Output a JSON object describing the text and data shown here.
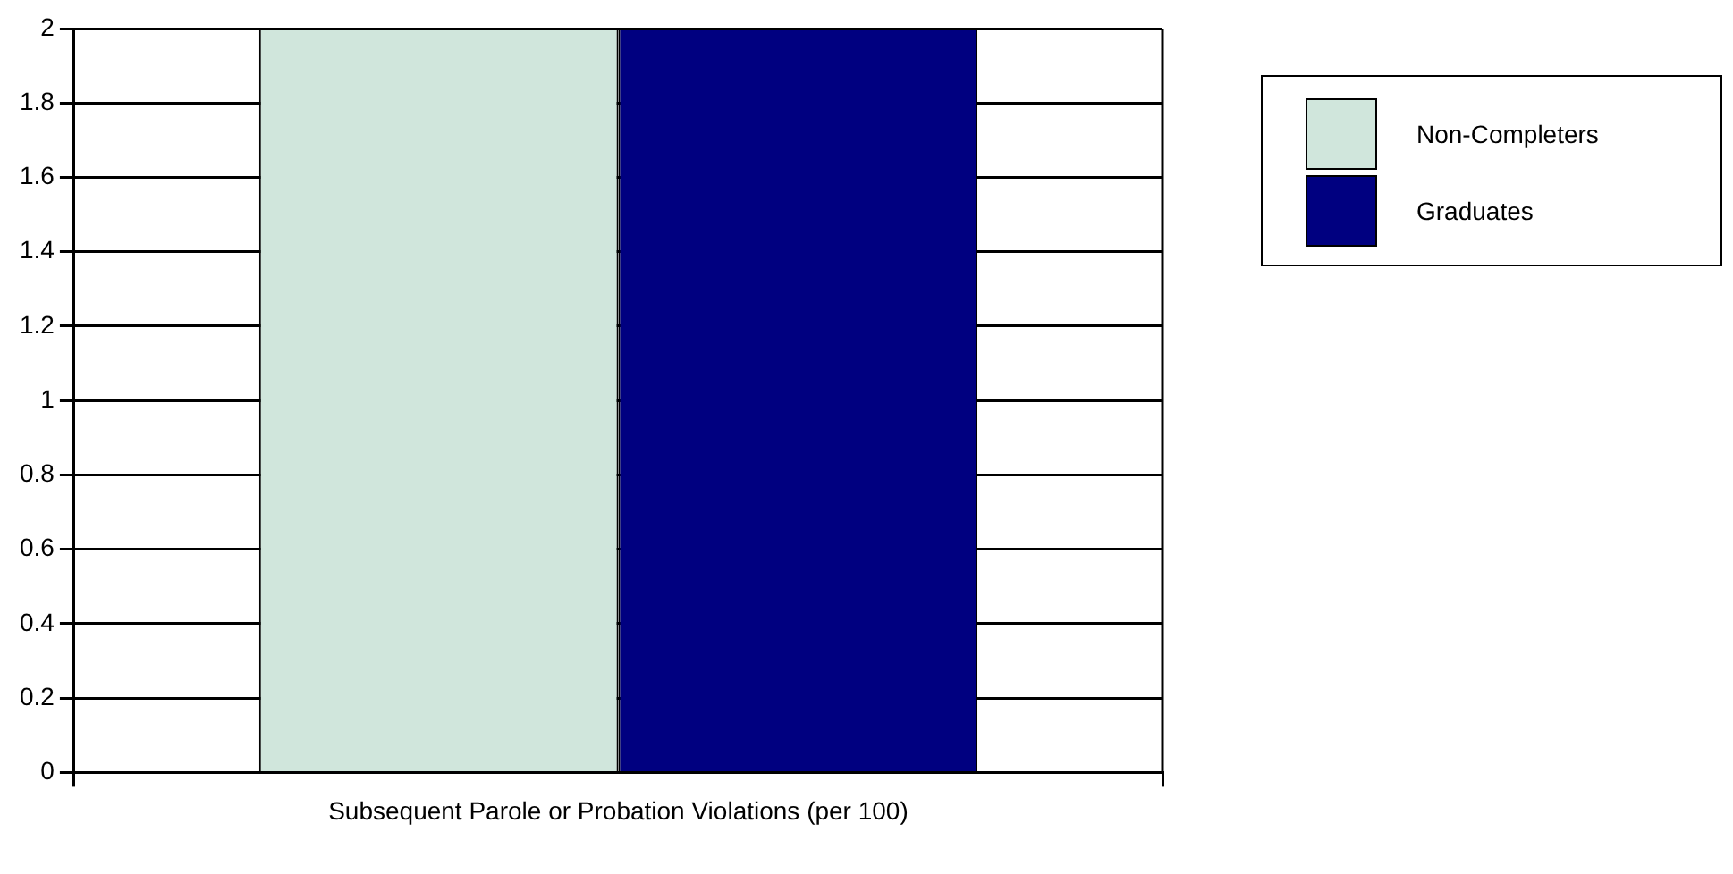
{
  "chart_data": {
    "type": "bar",
    "categories": [
      "Subsequent Parole or Probation Violations (per 100)"
    ],
    "series": [
      {
        "name": "Non-Completers",
        "color": "#d0e6dc",
        "values": [
          2
        ]
      },
      {
        "name": "Graduates",
        "color": "#000080",
        "values": [
          2
        ]
      }
    ],
    "ylim": [
      0,
      2
    ],
    "yticks": [
      0,
      0.2,
      0.4,
      0.6,
      0.8,
      1,
      1.2,
      1.4,
      1.6,
      1.8,
      2
    ],
    "grid": "y",
    "legend": "top right"
  }
}
